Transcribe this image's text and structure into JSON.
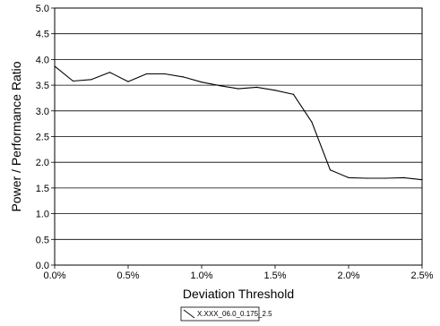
{
  "chart_data": {
    "type": "line",
    "title": "",
    "xlabel": "Deviation Threshold",
    "ylabel": "Power / Performance Ratio",
    "xlim": [
      0.0,
      2.5
    ],
    "ylim": [
      0.0,
      5.0
    ],
    "x_unit": "%",
    "x_ticks": [
      0.0,
      0.5,
      1.0,
      1.5,
      2.0,
      2.5
    ],
    "x_tick_labels": [
      "0.0%",
      "0.5%",
      "1.0%",
      "1.5%",
      "2.0%",
      "2.5%"
    ],
    "y_ticks": [
      0.0,
      0.5,
      1.0,
      1.5,
      2.0,
      2.5,
      3.0,
      3.5,
      4.0,
      4.5,
      5.0
    ],
    "y_tick_labels": [
      "0.0",
      "0.5",
      "1.0",
      "1.5",
      "2.0",
      "2.5",
      "3.0",
      "3.5",
      "4.0",
      "4.5",
      "5.0"
    ],
    "grid": {
      "horizontal": true,
      "vertical": false
    },
    "legend_position": "bottom-center",
    "series": [
      {
        "name": "X.XXX_06.0_0.175_2.5",
        "color": "#000000",
        "x": [
          0.0,
          0.125,
          0.25,
          0.375,
          0.5,
          0.625,
          0.75,
          0.875,
          1.0,
          1.125,
          1.25,
          1.375,
          1.5,
          1.625,
          1.75,
          1.875,
          2.0,
          2.125,
          2.25,
          2.375,
          2.5
        ],
        "y": [
          3.87,
          3.58,
          3.61,
          3.75,
          3.57,
          3.72,
          3.72,
          3.66,
          3.56,
          3.49,
          3.43,
          3.46,
          3.4,
          3.32,
          2.78,
          1.85,
          1.7,
          1.69,
          1.69,
          1.7,
          1.66
        ]
      }
    ]
  }
}
